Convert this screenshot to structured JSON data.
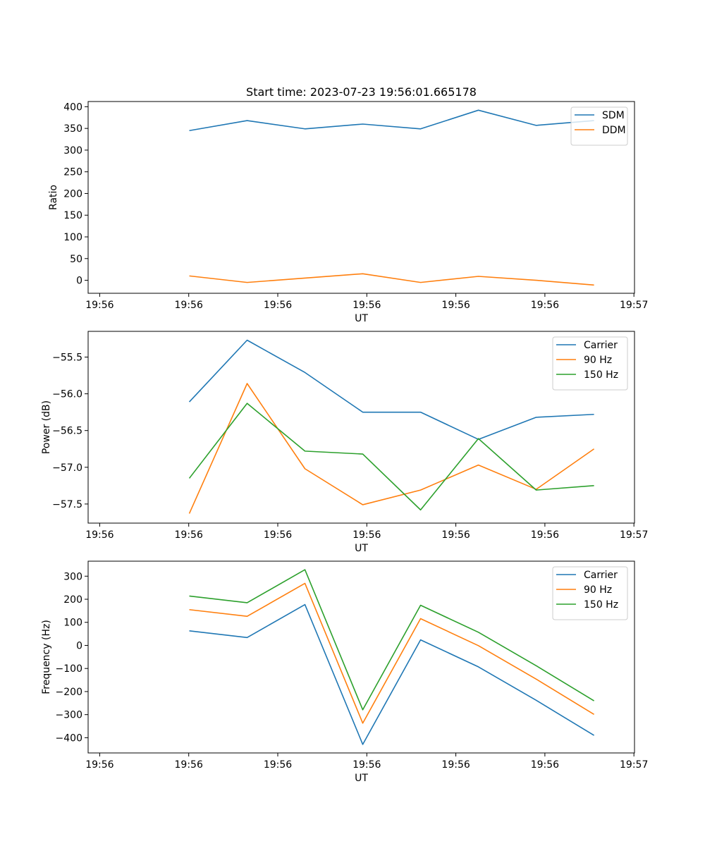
{
  "title": "Start time: 2023-07-23 19:56:01.665178",
  "colors": {
    "blue": "#1f77b4",
    "orange": "#ff7f0e",
    "green": "#2ca02c"
  },
  "chart_data": [
    {
      "type": "line",
      "title": "Start time: 2023-07-23 19:56:01.665178",
      "xlabel": "UT",
      "ylabel": "Ratio",
      "x": [
        1,
        2,
        3,
        4,
        5,
        6,
        7,
        8
      ],
      "xlim": [
        -0.75,
        8.7
      ],
      "xticks": [
        -0.55,
        0.99,
        2.53,
        4.07,
        5.61,
        7.15,
        8.69
      ],
      "xtick_labels": [
        "19:56",
        "19:56",
        "19:56",
        "19:56",
        "19:56",
        "19:56",
        "19:57"
      ],
      "ylim": [
        -30,
        412
      ],
      "yticks": [
        0,
        50,
        100,
        150,
        200,
        250,
        300,
        350,
        400
      ],
      "ytick_labels": [
        "0",
        "50",
        "100",
        "150",
        "200",
        "250",
        "300",
        "350",
        "400"
      ],
      "legend_position": "top-right",
      "series": [
        {
          "name": "SDM",
          "color": "#1f77b4",
          "values": [
            345,
            368,
            349,
            360,
            349,
            392,
            357,
            368
          ]
        },
        {
          "name": "DDM",
          "color": "#ff7f0e",
          "values": [
            10,
            -5,
            5,
            15,
            -5,
            9,
            0,
            -11
          ]
        }
      ]
    },
    {
      "type": "line",
      "title": "",
      "xlabel": "UT",
      "ylabel": "Power (dB)",
      "x": [
        1,
        2,
        3,
        4,
        5,
        6,
        7,
        8
      ],
      "xlim": [
        -0.75,
        8.7
      ],
      "xticks": [
        -0.55,
        0.99,
        2.53,
        4.07,
        5.61,
        7.15,
        8.69
      ],
      "xtick_labels": [
        "19:56",
        "19:56",
        "19:56",
        "19:56",
        "19:56",
        "19:56",
        "19:57"
      ],
      "ylim": [
        -57.76,
        -55.15
      ],
      "yticks": [
        -57.5,
        -57.0,
        -56.5,
        -56.0,
        -55.5
      ],
      "ytick_labels": [
        "−57.5",
        "−57.0",
        "−56.5",
        "−56.0",
        "−55.5"
      ],
      "legend_position": "top-right",
      "series": [
        {
          "name": "Carrier",
          "color": "#1f77b4",
          "values": [
            -56.11,
            -55.27,
            -55.71,
            -56.25,
            -56.25,
            -56.62,
            -56.32,
            -56.28
          ]
        },
        {
          "name": "90 Hz",
          "color": "#ff7f0e",
          "values": [
            -57.63,
            -55.86,
            -57.02,
            -57.51,
            -57.31,
            -56.97,
            -57.3,
            -56.75
          ]
        },
        {
          "name": "150 Hz",
          "color": "#2ca02c",
          "values": [
            -57.15,
            -56.13,
            -56.78,
            -56.82,
            -57.58,
            -56.61,
            -57.31,
            -57.25
          ]
        }
      ]
    },
    {
      "type": "line",
      "title": "",
      "xlabel": "UT",
      "ylabel": "Frequency (Hz)",
      "x": [
        1,
        2,
        3,
        4,
        5,
        6,
        7,
        8
      ],
      "xlim": [
        -0.75,
        8.7
      ],
      "xticks": [
        -0.55,
        0.99,
        2.53,
        4.07,
        5.61,
        7.15,
        8.69
      ],
      "xtick_labels": [
        "19:56",
        "19:56",
        "19:56",
        "19:56",
        "19:56",
        "19:56",
        "19:57"
      ],
      "ylim": [
        -466,
        365
      ],
      "yticks": [
        -400,
        -300,
        -200,
        -100,
        0,
        100,
        200,
        300
      ],
      "ytick_labels": [
        "−400",
        "−300",
        "−200",
        "−100",
        "0",
        "100",
        "200",
        "300"
      ],
      "legend_position": "top-right",
      "series": [
        {
          "name": "Carrier",
          "color": "#1f77b4",
          "values": [
            63,
            34,
            177,
            -429,
            24,
            -93,
            -238,
            -390
          ]
        },
        {
          "name": "90 Hz",
          "color": "#ff7f0e",
          "values": [
            155,
            126,
            269,
            -337,
            116,
            -1,
            -146,
            -299
          ]
        },
        {
          "name": "150 Hz",
          "color": "#2ca02c",
          "values": [
            214,
            185,
            328,
            -279,
            174,
            57,
            -88,
            -240
          ]
        }
      ]
    }
  ]
}
